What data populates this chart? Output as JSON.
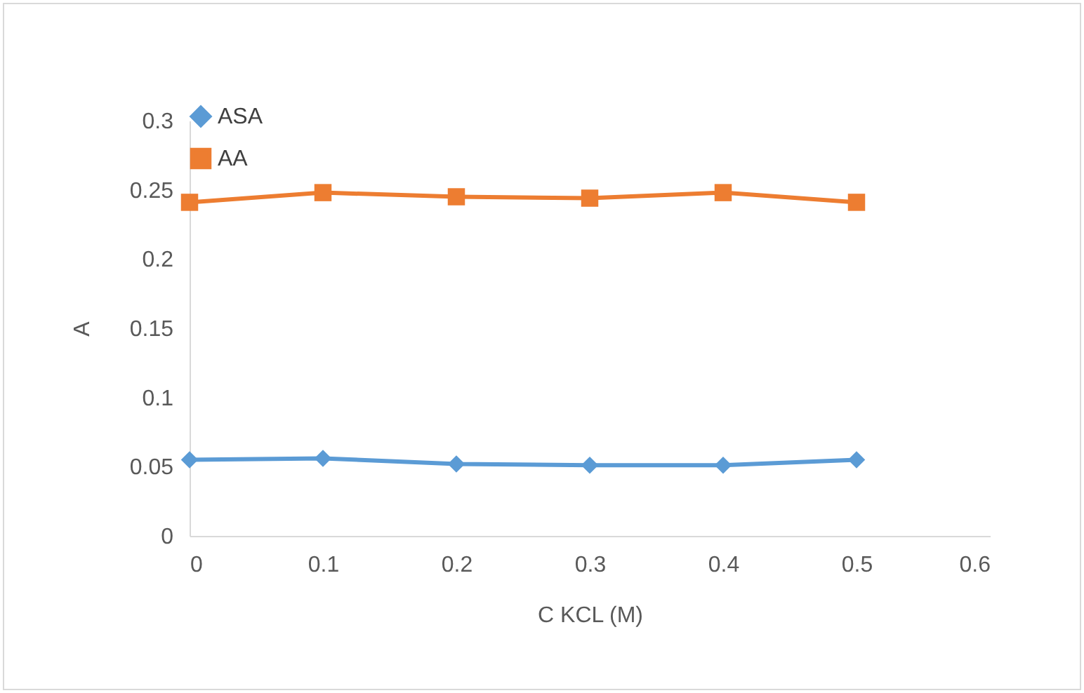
{
  "chart_data": {
    "type": "line",
    "xlabel": "C KCL (M)",
    "ylabel": "A",
    "x": [
      0,
      0.1,
      0.2,
      0.3,
      0.4,
      0.5
    ],
    "xlim": [
      0,
      0.6
    ],
    "xticks": [
      0,
      0.1,
      0.2,
      0.3,
      0.4,
      0.5,
      0.6
    ],
    "ylim": [
      0,
      0.3
    ],
    "yticks": [
      0,
      0.05,
      0.1,
      0.15,
      0.2,
      0.25,
      0.3
    ],
    "grid": false,
    "legend": "top",
    "series": [
      {
        "name": "ASA",
        "color": "#5b9bd5",
        "marker": "diamond",
        "values": [
          0.055,
          0.056,
          0.052,
          0.051,
          0.051,
          0.055
        ]
      },
      {
        "name": "AA",
        "color": "#ed7d31",
        "marker": "square",
        "values": [
          0.241,
          0.248,
          0.245,
          0.244,
          0.248,
          0.241
        ]
      }
    ]
  }
}
